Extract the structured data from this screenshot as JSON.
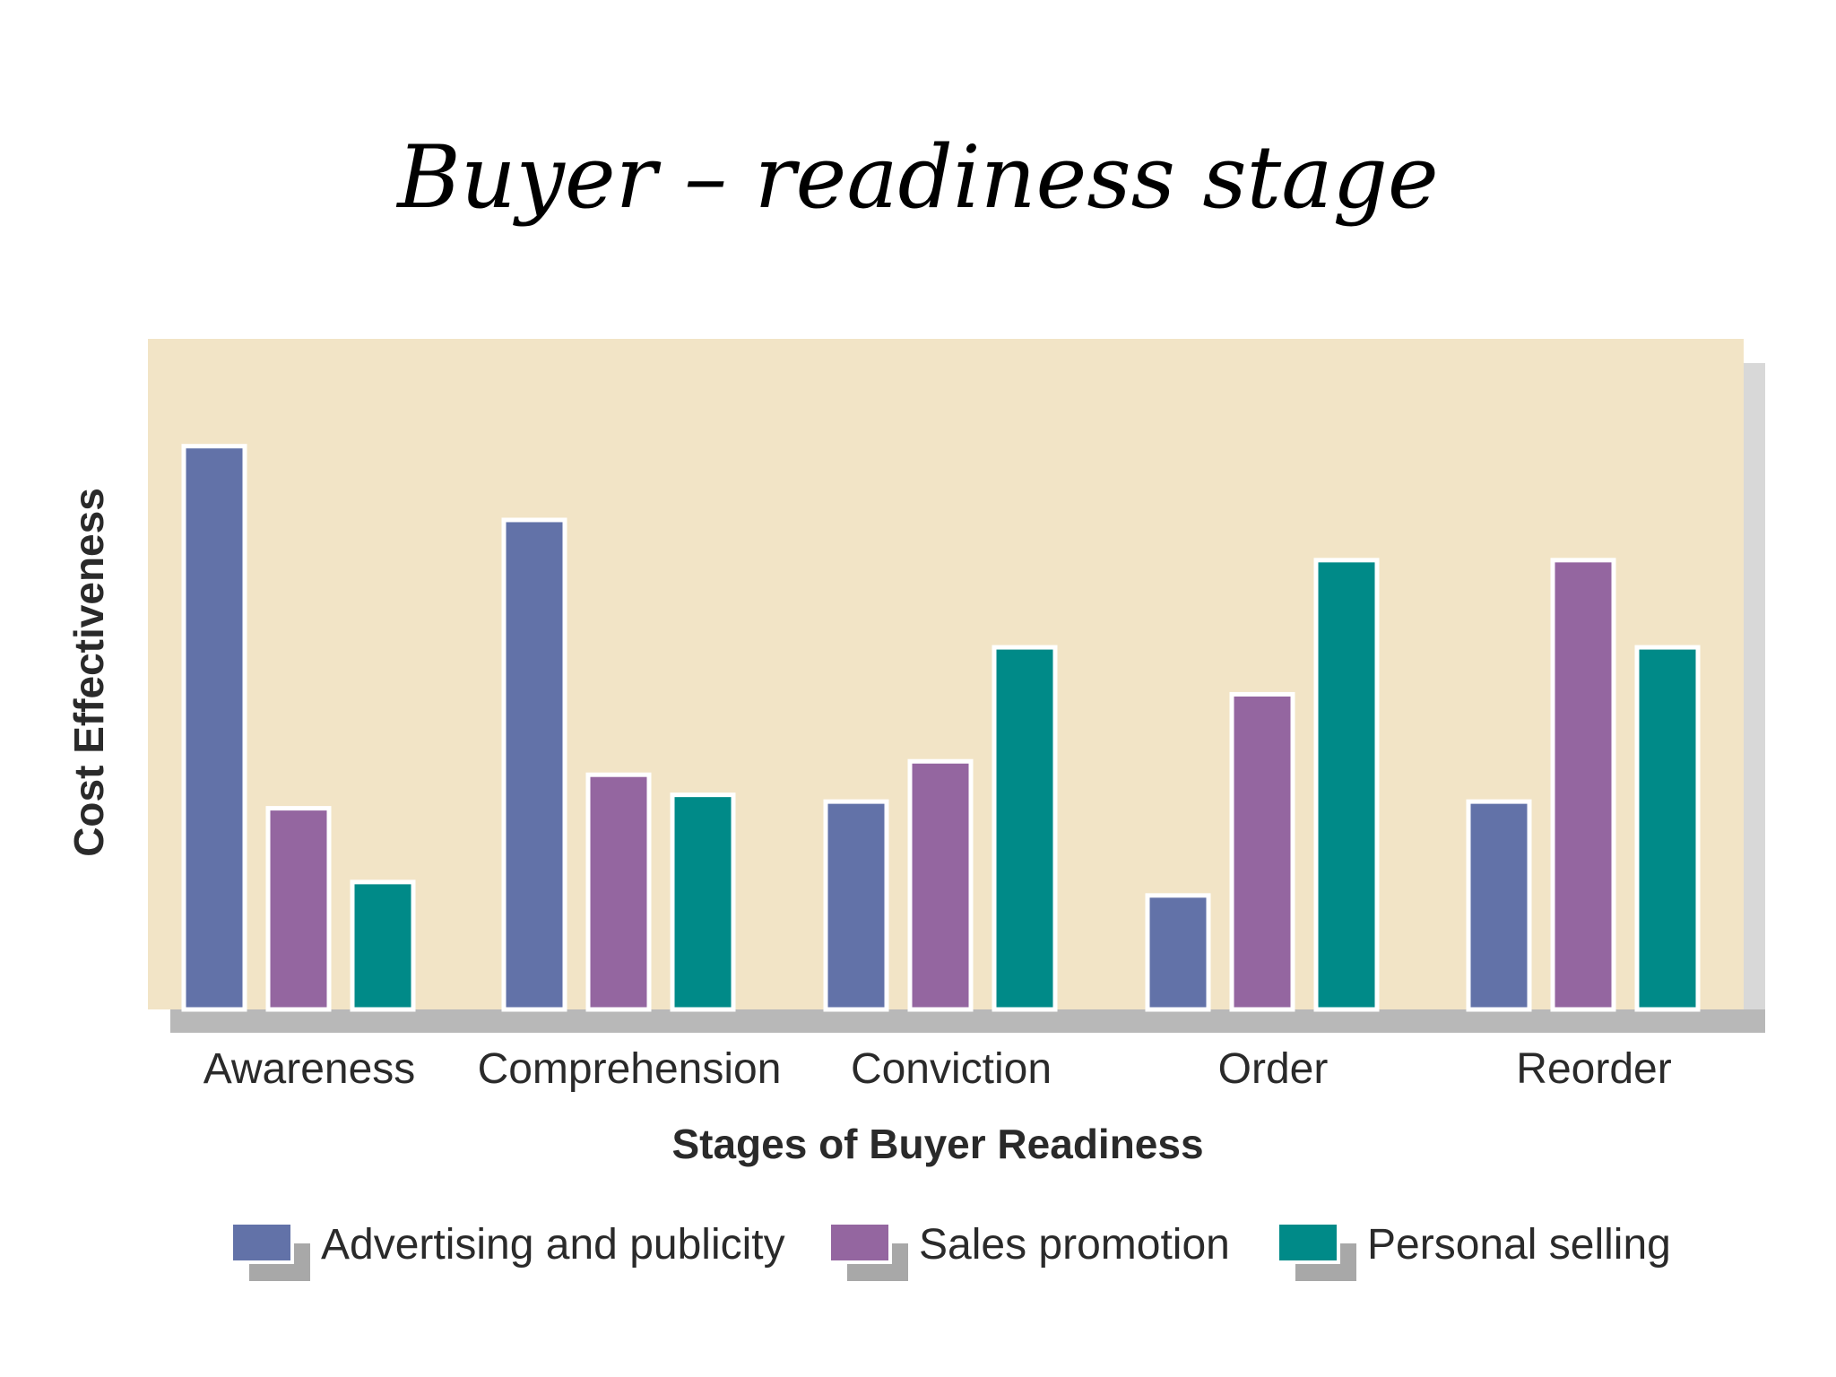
{
  "slide": {
    "title": "Buyer – readiness stage"
  },
  "chart_data": {
    "type": "bar",
    "title": "",
    "xlabel": "Stages of Buyer Readiness",
    "ylabel": "Cost Effectiveness",
    "categories": [
      "Awareness",
      "Comprehension",
      "Conviction",
      "Order",
      "Reorder"
    ],
    "series": [
      {
        "name": "Advertising and publicity",
        "color": "#6272a8",
        "values": [
          84,
          73,
          31,
          17,
          31
        ]
      },
      {
        "name": "Sales promotion",
        "color": "#9466a0",
        "values": [
          30,
          35,
          37,
          47,
          67
        ]
      },
      {
        "name": "Personal selling",
        "color": "#008a88",
        "values": [
          19,
          32,
          54,
          67,
          54
        ]
      }
    ],
    "ylim": [
      0,
      100
    ],
    "grid": false,
    "legend_position": "bottom",
    "plot_background": "#f2e4c6"
  }
}
